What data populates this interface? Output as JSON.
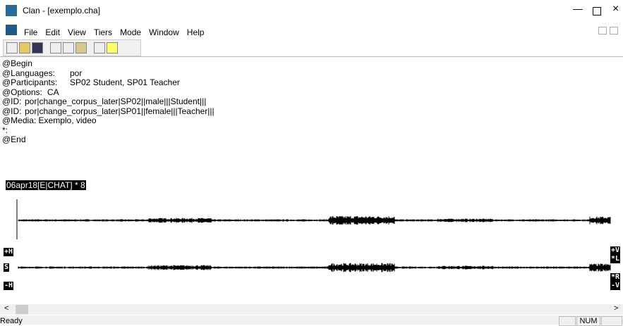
{
  "window": {
    "title": "Clan - [exemplo.cha]"
  },
  "menu": [
    "File",
    "Edit",
    "View",
    "Tiers",
    "Mode",
    "Window",
    "Help"
  ],
  "document": {
    "lines": [
      "@Begin",
      "@Languages:\tpor",
      "@Participants:\tSP02 Student, SP01 Teacher",
      "@Options:\tCA",
      "@ID:\tpor|change_corpus_later|SP02||male|||Student|||",
      "@ID:\tpor|change_corpus_later|SP01||female|||Teacher|||",
      "@Media: Exemplo, video",
      "*:",
      "@End"
    ],
    "status_line": "06apr18[E|CHAT] * 8"
  },
  "wave": {
    "left_labels": [
      "+H",
      "S",
      "-H"
    ],
    "right_labels": [
      "+V",
      "*L",
      "*R",
      "-V"
    ]
  },
  "statusbar": {
    "text": "Ready",
    "num": "NUM"
  }
}
